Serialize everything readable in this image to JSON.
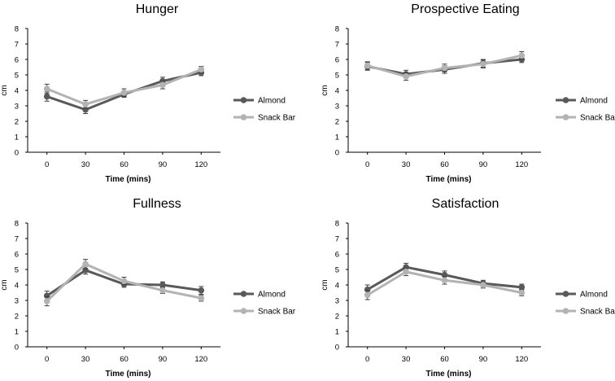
{
  "chart_data": [
    {
      "type": "line",
      "title": "Hunger",
      "xlabel": "Time (mins)",
      "ylabel": "cm",
      "x": [
        "0",
        "30",
        "60",
        "90",
        "120"
      ],
      "ylim": [
        0,
        8
      ],
      "yticks": [
        "0",
        "1",
        "2",
        "3",
        "4",
        "5",
        "6",
        "7",
        "8"
      ],
      "series": [
        {
          "name": "Almond",
          "color": "#595959",
          "values": [
            3.6,
            2.75,
            3.75,
            4.6,
            5.15
          ],
          "errors": [
            0.3,
            0.25,
            0.2,
            0.25,
            0.2
          ]
        },
        {
          "name": "Snack Bar",
          "color": "#b3b3b3",
          "values": [
            4.1,
            3.1,
            3.85,
            4.35,
            5.35
          ],
          "errors": [
            0.3,
            0.25,
            0.25,
            0.25,
            0.2
          ]
        }
      ]
    },
    {
      "type": "line",
      "title": "Prospective Eating",
      "xlabel": "Time (mins)",
      "ylabel": "cm",
      "x": [
        "0",
        "30",
        "60",
        "90",
        "120"
      ],
      "ylim": [
        0,
        8
      ],
      "yticks": [
        "0",
        "1",
        "2",
        "3",
        "4",
        "5",
        "6",
        "7",
        "8"
      ],
      "series": [
        {
          "name": "Almond",
          "color": "#595959",
          "values": [
            5.55,
            5.05,
            5.35,
            5.75,
            6.0
          ],
          "errors": [
            0.25,
            0.25,
            0.25,
            0.25,
            0.2
          ]
        },
        {
          "name": "Snack Bar",
          "color": "#b3b3b3",
          "values": [
            5.6,
            4.9,
            5.45,
            5.7,
            6.25
          ],
          "errors": [
            0.25,
            0.25,
            0.25,
            0.25,
            0.25
          ]
        }
      ]
    },
    {
      "type": "line",
      "title": "Fullness",
      "xlabel": "Time (mins)",
      "ylabel": "cm",
      "x": [
        "0",
        "30",
        "60",
        "90",
        "120"
      ],
      "ylim": [
        0,
        8
      ],
      "yticks": [
        "0",
        "1",
        "2",
        "3",
        "4",
        "5",
        "6",
        "7",
        "8"
      ],
      "series": [
        {
          "name": "Almond",
          "color": "#595959",
          "values": [
            3.3,
            4.95,
            4.05,
            4.0,
            3.65
          ],
          "errors": [
            0.3,
            0.25,
            0.2,
            0.2,
            0.25
          ]
        },
        {
          "name": "Snack Bar",
          "color": "#b3b3b3",
          "values": [
            2.95,
            5.35,
            4.25,
            3.65,
            3.15
          ],
          "errors": [
            0.3,
            0.3,
            0.25,
            0.2,
            0.2
          ]
        }
      ]
    },
    {
      "type": "line",
      "title": "Satisfaction",
      "xlabel": "Time (mins)",
      "ylabel": "cm",
      "x": [
        "0",
        "30",
        "60",
        "90",
        "120"
      ],
      "ylim": [
        0,
        8
      ],
      "yticks": [
        "0",
        "1",
        "2",
        "3",
        "4",
        "5",
        "6",
        "7",
        "8"
      ],
      "series": [
        {
          "name": "Almond",
          "color": "#595959",
          "values": [
            3.7,
            5.15,
            4.65,
            4.1,
            3.85
          ],
          "errors": [
            0.3,
            0.25,
            0.25,
            0.2,
            0.2
          ]
        },
        {
          "name": "Snack Bar",
          "color": "#b3b3b3",
          "values": [
            3.35,
            4.85,
            4.3,
            4.0,
            3.5
          ],
          "errors": [
            0.3,
            0.25,
            0.25,
            0.2,
            0.2
          ]
        }
      ]
    }
  ]
}
